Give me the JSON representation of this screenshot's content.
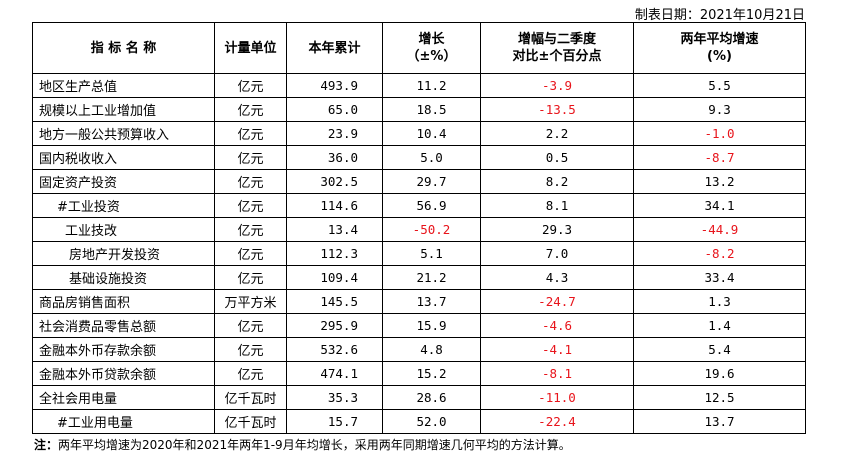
{
  "date_label": "制表日期：2021年10月21日",
  "headers": {
    "name": "指 标 名 称",
    "unit": "计量单位",
    "cumulative": "本年累计",
    "growth_line1": "增长",
    "growth_line2": "（±%）",
    "compare_line1": "增幅与二季度",
    "compare_line2": "对比±个百分点",
    "two_year_line1": "两年平均增速",
    "two_year_line2": "(%)"
  },
  "rows": [
    {
      "name": "地区生产总值",
      "indent": 0,
      "unit": "亿元",
      "cumulative": "493.9",
      "growth": "11.2",
      "compare": "-3.9",
      "two_year": "5.5"
    },
    {
      "name": "规模以上工业增加值",
      "indent": 0,
      "unit": "亿元",
      "cumulative": "65.0",
      "growth": "18.5",
      "compare": "-13.5",
      "two_year": "9.3"
    },
    {
      "name": "地方一般公共预算收入",
      "indent": 0,
      "unit": "亿元",
      "cumulative": "23.9",
      "growth": "10.4",
      "compare": "2.2",
      "two_year": "-1.0"
    },
    {
      "name": "国内税收收入",
      "indent": 0,
      "unit": "亿元",
      "cumulative": "36.0",
      "growth": "5.0",
      "compare": "0.5",
      "two_year": "-8.7"
    },
    {
      "name": "固定资产投资",
      "indent": 0,
      "unit": "亿元",
      "cumulative": "302.5",
      "growth": "29.7",
      "compare": "8.2",
      "two_year": "13.2"
    },
    {
      "name": "#工业投资",
      "indent": 1,
      "unit": "亿元",
      "cumulative": "114.6",
      "growth": "56.9",
      "compare": "8.1",
      "two_year": "34.1"
    },
    {
      "name": "工业技改",
      "indent": 2,
      "unit": "亿元",
      "cumulative": "13.4",
      "growth": "-50.2",
      "compare": "29.3",
      "two_year": "-44.9"
    },
    {
      "name": "房地产开发投资",
      "indent": 3,
      "unit": "亿元",
      "cumulative": "112.3",
      "growth": "5.1",
      "compare": "7.0",
      "two_year": "-8.2"
    },
    {
      "name": "基础设施投资",
      "indent": 3,
      "unit": "亿元",
      "cumulative": "109.4",
      "growth": "21.2",
      "compare": "4.3",
      "two_year": "33.4"
    },
    {
      "name": "商品房销售面积",
      "indent": 0,
      "unit": "万平方米",
      "cumulative": "145.5",
      "growth": "13.7",
      "compare": "-24.7",
      "two_year": "1.3"
    },
    {
      "name": "社会消费品零售总额",
      "indent": 0,
      "unit": "亿元",
      "cumulative": "295.9",
      "growth": "15.9",
      "compare": "-4.6",
      "two_year": "1.4"
    },
    {
      "name": "金融本外币存款余额",
      "indent": 0,
      "unit": "亿元",
      "cumulative": "532.6",
      "growth": "4.8",
      "compare": "-4.1",
      "two_year": "5.4"
    },
    {
      "name": "金融本外币贷款余额",
      "indent": 0,
      "unit": "亿元",
      "cumulative": "474.1",
      "growth": "15.2",
      "compare": "-8.1",
      "two_year": "19.6"
    },
    {
      "name": "全社会用电量",
      "indent": 0,
      "unit": "亿千瓦时",
      "cumulative": "35.3",
      "growth": "28.6",
      "compare": "-11.0",
      "two_year": "12.5"
    },
    {
      "name": "#工业用电量",
      "indent": 1,
      "unit": "亿千瓦时",
      "cumulative": "15.7",
      "growth": "52.0",
      "compare": "-22.4",
      "two_year": "13.7"
    }
  ],
  "note": {
    "label": "注：",
    "text": "两年平均增速为2020年和2021年两年1-9月年均增长，采用两年同期增速几何平均的方法计算。"
  },
  "colors": {
    "negative": "#e8141b",
    "text": "#000000"
  }
}
